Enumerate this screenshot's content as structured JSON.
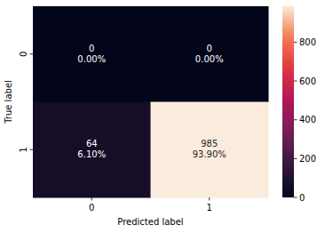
{
  "chart_data": {
    "type": "heatmap",
    "x_label": "Predicted label",
    "y_label": "True label",
    "x_categories": [
      "0",
      "1"
    ],
    "y_categories": [
      "0",
      "1"
    ],
    "cells": [
      [
        0,
        0
      ],
      [
        64,
        985
      ]
    ],
    "percentages": [
      [
        0.0,
        0.0
      ],
      [
        6.1,
        93.9
      ]
    ],
    "percentage_labels": [
      [
        "0.00%",
        "0.00%"
      ],
      [
        "6.10%",
        "93.90%"
      ]
    ],
    "data_labels": true,
    "colorbar": {
      "range": [
        0,
        985
      ],
      "ticks": [
        0,
        200,
        400,
        600,
        800
      ]
    }
  }
}
